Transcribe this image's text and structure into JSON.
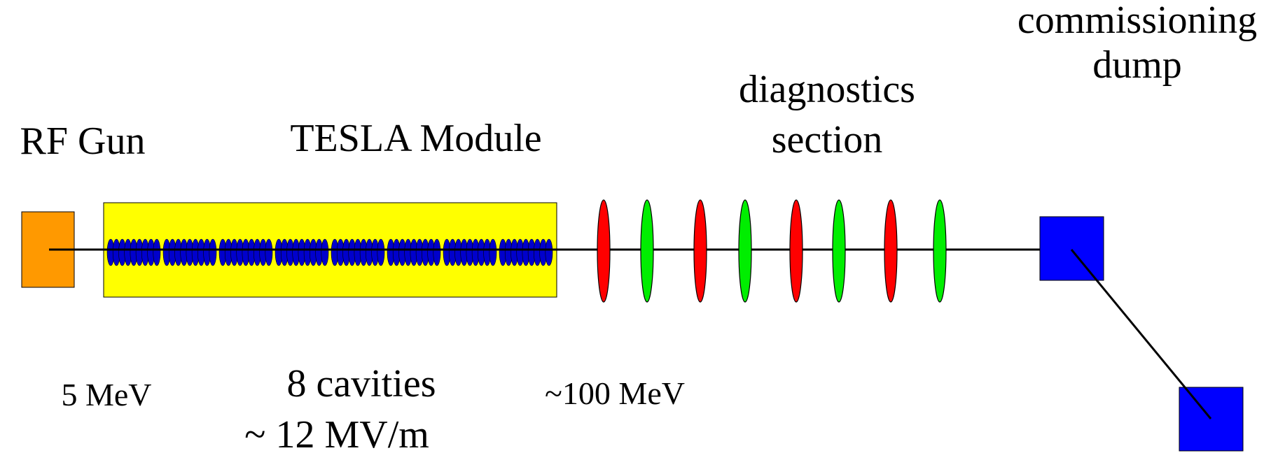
{
  "labels": {
    "rf_gun": "RF Gun",
    "tesla_module": "TESLA Module",
    "diagnostics_line1": "diagnostics",
    "diagnostics_line2": "section",
    "dump_line1": "commissioning",
    "dump_line2": "dump",
    "gun_energy": "5 MeV",
    "cavities_count": "8 cavities",
    "gradient": "~ 12 MV/m",
    "module_energy": "~100 MeV"
  },
  "components": {
    "cavity_count": 8,
    "cells_per_cavity": 9,
    "quadrupole_count": 8
  },
  "colors": {
    "rf_gun": "#ff9900",
    "tesla_module": "#ffff00",
    "cavity_cell": "#0000cc",
    "quad_focusing": "#ff0000",
    "quad_defocusing": "#00ee00",
    "dump": "#0000ff",
    "beamline": "#000000"
  },
  "icons": {
    "rf_gun": "orange-square-icon",
    "quad": "ellipse-lens-icon",
    "dump": "blue-square-icon"
  }
}
